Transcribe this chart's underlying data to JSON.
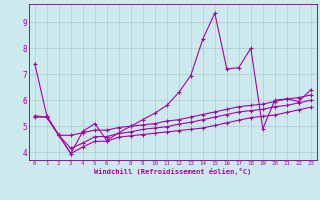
{
  "background_color": "#cce9ed",
  "grid_color": "#aacccc",
  "line_color": "#aa00aa",
  "xlim": [
    -0.5,
    23.5
  ],
  "ylim": [
    3.7,
    9.7
  ],
  "yticks": [
    4,
    5,
    6,
    7,
    8,
    9
  ],
  "xticks": [
    0,
    1,
    2,
    3,
    4,
    5,
    6,
    7,
    8,
    9,
    10,
    11,
    12,
    13,
    14,
    15,
    16,
    17,
    18,
    19,
    20,
    21,
    22,
    23
  ],
  "xlabel": "Windchill (Refroidissement éolien,°C)",
  "series1_x": [
    0,
    1,
    2,
    3,
    4,
    5,
    6,
    7,
    8,
    9,
    10,
    11,
    12,
    13,
    14,
    15,
    16,
    17,
    18,
    19,
    20,
    21,
    22,
    23
  ],
  "series1_y": [
    7.4,
    5.4,
    4.65,
    3.95,
    4.8,
    5.1,
    4.45,
    4.75,
    5.0,
    5.25,
    5.5,
    5.8,
    6.3,
    6.95,
    8.35,
    9.35,
    7.2,
    7.25,
    8.0,
    4.9,
    6.0,
    6.05,
    5.95,
    6.4
  ],
  "series2_x": [
    0,
    1,
    2,
    3,
    4,
    5,
    6,
    7,
    8,
    9,
    10,
    11,
    12,
    13,
    14,
    15,
    16,
    17,
    18,
    19,
    20,
    21,
    22,
    23
  ],
  "series2_y": [
    5.4,
    5.35,
    4.65,
    4.65,
    4.75,
    4.85,
    4.85,
    4.95,
    5.0,
    5.05,
    5.1,
    5.2,
    5.25,
    5.35,
    5.45,
    5.55,
    5.65,
    5.75,
    5.8,
    5.85,
    5.95,
    6.05,
    6.1,
    6.2
  ],
  "series3_x": [
    0,
    1,
    2,
    3,
    4,
    5,
    6,
    7,
    8,
    9,
    10,
    11,
    12,
    13,
    14,
    15,
    16,
    17,
    18,
    19,
    20,
    21,
    22,
    23
  ],
  "series3_y": [
    5.35,
    5.35,
    4.65,
    4.15,
    4.35,
    4.6,
    4.6,
    4.72,
    4.78,
    4.88,
    4.93,
    4.98,
    5.08,
    5.15,
    5.25,
    5.35,
    5.45,
    5.55,
    5.6,
    5.65,
    5.75,
    5.8,
    5.9,
    6.0
  ],
  "series4_x": [
    1,
    2,
    3,
    4,
    5,
    6,
    7,
    8,
    9,
    10,
    11,
    12,
    13,
    14,
    15,
    16,
    17,
    18,
    19,
    20,
    21,
    22,
    23
  ],
  "series4_y": [
    5.35,
    4.65,
    3.95,
    4.2,
    4.42,
    4.42,
    4.58,
    4.63,
    4.68,
    4.73,
    4.78,
    4.83,
    4.88,
    4.93,
    5.03,
    5.13,
    5.23,
    5.33,
    5.38,
    5.43,
    5.53,
    5.63,
    5.73
  ]
}
